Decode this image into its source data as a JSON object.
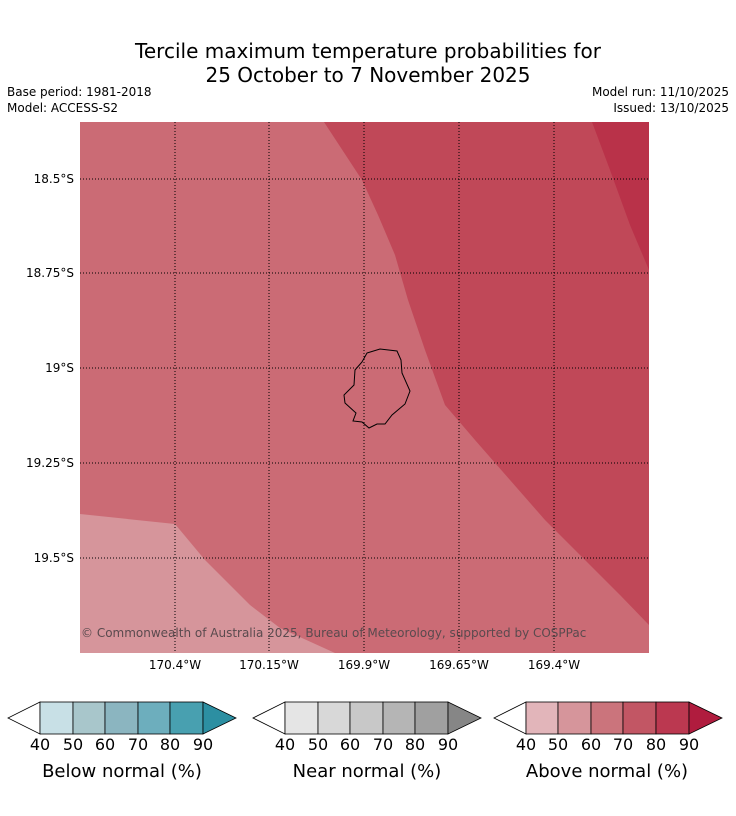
{
  "title_line1": "Tercile maximum temperature probabilities for",
  "title_line2": "25 October to 7 November 2025",
  "base_period": "Base period: 1981-2018",
  "model": "Model: ACCESS-S2",
  "model_run": "Model run: 11/10/2025",
  "issued": "Issued: 13/10/2025",
  "copyright": "© Commonwealth of Australia 2025, Bureau of Meteorology, supported by COSPPac",
  "latitudes": [
    "18.5°S",
    "18.75°S",
    "19°S",
    "19.25°S",
    "19.5°S"
  ],
  "longitudes": [
    "170.4°W",
    "170.15°W",
    "169.9°W",
    "169.65°W",
    "169.4°W"
  ],
  "colors": {
    "above_50_60": "#d6959b",
    "above_60_70": "#cb6b75",
    "above_70_80": "#c04858",
    "above_80_90": "#b93249",
    "coast": "#000000"
  },
  "colorbars": [
    {
      "name": "below",
      "label": "Below normal (%)",
      "ticks": [
        "40",
        "50",
        "60",
        "70",
        "80",
        "90"
      ],
      "colors": [
        "#c8e0e6",
        "#a8c6cb",
        "#8bb5c0",
        "#6daebd",
        "#48a0b0",
        "#2c8fa2"
      ]
    },
    {
      "name": "near",
      "label": "Near normal (%)",
      "ticks": [
        "40",
        "50",
        "60",
        "70",
        "80",
        "90"
      ],
      "colors": [
        "#e5e5e5",
        "#d8d8d8",
        "#c8c8c8",
        "#b5b5b5",
        "#a0a0a0",
        "#868686"
      ]
    },
    {
      "name": "above",
      "label": "Above normal (%)",
      "ticks": [
        "40",
        "50",
        "60",
        "70",
        "80",
        "90"
      ],
      "colors": [
        "#e2b5ba",
        "#d6959b",
        "#cb747c",
        "#c25664",
        "#bb3850",
        "#b01c3e"
      ]
    }
  ]
}
